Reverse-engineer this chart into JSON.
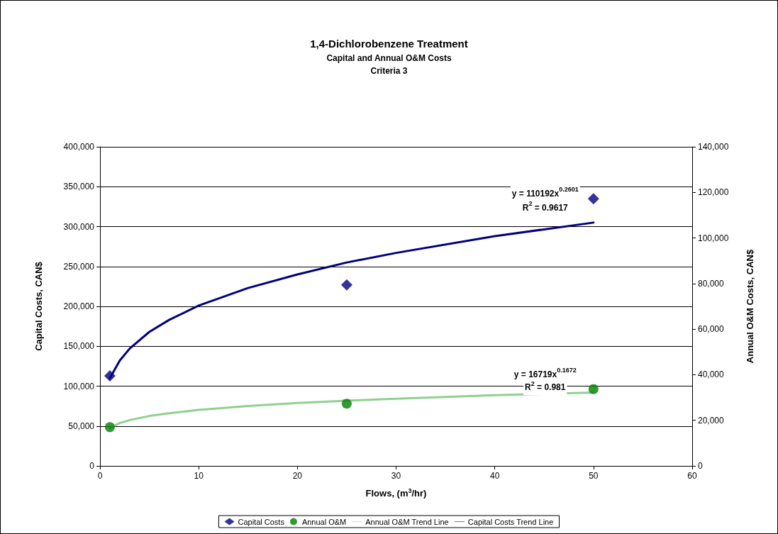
{
  "chart_data": {
    "type": "scatter",
    "title": "1,4-Dichlorobenzene Treatment",
    "subtitle": "Capital and Annual O&M Costs\nCriteria 3",
    "xlabel": "Flows, (m$^{3}$/hr)",
    "ylabel": "Capital Costs, CAN$",
    "y2label": "Annual O&M Costs, CAN$",
    "series": [
      {
        "name": "Capital Costs",
        "marker": "diamond",
        "color": "#000080",
        "x": [
          1,
          25,
          50
        ],
        "values": [
          113000,
          227000,
          335000
        ]
      },
      {
        "name": "Annual O&M",
        "marker": "circle",
        "color": "#008000",
        "axis": "y2",
        "x": [
          1,
          25,
          50
        ],
        "values": [
          17000,
          27300,
          33700
        ]
      },
      {
        "name": "Annual O&M Trend Line",
        "type": "line",
        "marker": "none",
        "color": "#90d090",
        "axis": "y2",
        "x": [
          1,
          2,
          3,
          5,
          7,
          10,
          15,
          20,
          25,
          30,
          40,
          50
        ],
        "values": [
          16700,
          18800,
          20100,
          21900,
          23100,
          24600,
          26300,
          27600,
          28600,
          29500,
          31000,
          32200
        ]
      },
      {
        "name": "Capital Costs Trend Line",
        "type": "line",
        "marker": "none",
        "color": "#000080",
        "x": [
          1,
          2,
          3,
          5,
          7,
          10,
          15,
          20,
          25,
          30,
          40,
          50
        ],
        "values": [
          110000,
          132000,
          147000,
          168000,
          183000,
          201000,
          223000,
          240000,
          255000,
          267000,
          288000,
          305000
        ]
      }
    ],
    "xlim": [
      0,
      60
    ],
    "xticks": [
      0,
      10,
      20,
      30,
      40,
      50,
      60
    ],
    "ylim": [
      0,
      400000
    ],
    "yticks": [
      0,
      {
        "value": 50000,
        "label": "50,000"
      },
      {
        "value": 100000,
        "label": "100,000"
      },
      {
        "value": 150000,
        "label": "150,000"
      },
      {
        "value": 200000,
        "label": "200,000"
      },
      {
        "value": 250000,
        "label": "250,000"
      },
      {
        "value": 300000,
        "label": "300,000"
      },
      {
        "value": 350000,
        "label": "350,000"
      },
      {
        "value": 400000,
        "label": "400,000"
      }
    ],
    "y2lim": [
      0,
      140000
    ],
    "y2ticks": [
      0,
      {
        "value": 20000,
        "label": "20,000"
      },
      {
        "value": 40000,
        "label": "40,000"
      },
      {
        "value": 60000,
        "label": "60,000"
      },
      {
        "value": 80000,
        "label": "80,000"
      },
      {
        "value": 100000,
        "label": "100,000"
      },
      {
        "value": 120000,
        "label": "120,000"
      },
      {
        "value": 140000,
        "label": "140,000"
      }
    ],
    "annotations": [
      "y = 110192x$^{0.2601}$",
      "R$^{2}$ = 0.9617",
      "y = 16719x$^{0.1672}$",
      "R$^{2}$ = 0.981"
    ],
    "grid": "y",
    "legend": "bottom",
    "line_style": "solid"
  }
}
